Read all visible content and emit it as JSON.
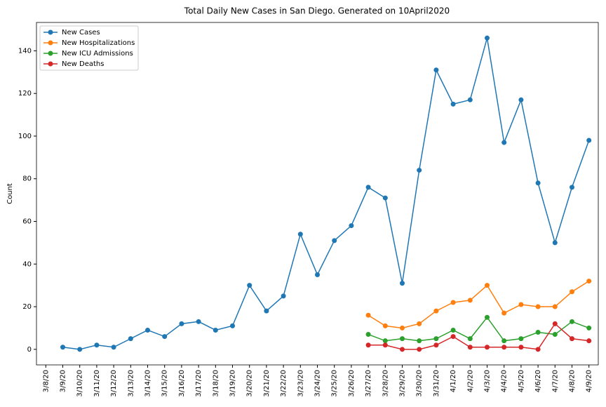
{
  "chart_data": {
    "type": "line",
    "title": "Total Daily New Cases in San Diego. Generated on 10April2020",
    "y_label": "Count",
    "categories": [
      "3/8/20",
      "3/9/20",
      "3/10/20",
      "3/11/20",
      "3/12/20",
      "3/13/20",
      "3/14/20",
      "3/15/20",
      "3/16/20",
      "3/17/20",
      "3/18/20",
      "3/19/20",
      "3/20/20",
      "3/21/20",
      "3/22/20",
      "3/23/20",
      "3/24/20",
      "3/25/20",
      "3/26/20",
      "3/27/20",
      "3/28/20",
      "3/29/20",
      "3/30/20",
      "3/31/20",
      "4/1/20",
      "4/2/20",
      "4/3/20",
      "4/4/20",
      "4/5/20",
      "4/6/20",
      "4/7/20",
      "4/8/20",
      "4/9/20"
    ],
    "series": [
      {
        "name": "New Cases",
        "color": "#1f77b4",
        "values": [
          null,
          1,
          0,
          2,
          1,
          5,
          9,
          6,
          12,
          13,
          9,
          11,
          30,
          18,
          25,
          54,
          35,
          51,
          58,
          76,
          71,
          31,
          84,
          131,
          115,
          117,
          146,
          97,
          117,
          78,
          50,
          76,
          98
        ]
      },
      {
        "name": "New Hospitalizations",
        "color": "#ff7f0e",
        "values": [
          null,
          null,
          null,
          null,
          null,
          null,
          null,
          null,
          null,
          null,
          null,
          null,
          null,
          null,
          null,
          null,
          null,
          null,
          null,
          16,
          11,
          10,
          12,
          18,
          22,
          23,
          30,
          17,
          21,
          20,
          20,
          27,
          32
        ]
      },
      {
        "name": "New ICU Admissions",
        "color": "#2ca02c",
        "values": [
          null,
          null,
          null,
          null,
          null,
          null,
          null,
          null,
          null,
          null,
          null,
          null,
          null,
          null,
          null,
          null,
          null,
          null,
          null,
          7,
          4,
          5,
          4,
          5,
          9,
          5,
          15,
          4,
          5,
          8,
          7,
          13,
          10
        ]
      },
      {
        "name": "New Deaths",
        "color": "#d62728",
        "values": [
          null,
          null,
          null,
          null,
          null,
          null,
          null,
          null,
          null,
          null,
          null,
          null,
          null,
          null,
          null,
          null,
          null,
          null,
          null,
          2,
          2,
          0,
          0,
          2,
          6,
          1,
          1,
          1,
          1,
          0,
          12,
          5,
          4
        ]
      }
    ],
    "ylim": [
      -7.3,
      153.3
    ],
    "yticks": [
      0,
      20,
      40,
      60,
      80,
      100,
      120,
      140
    ],
    "legend": "upper left",
    "grid": false
  }
}
